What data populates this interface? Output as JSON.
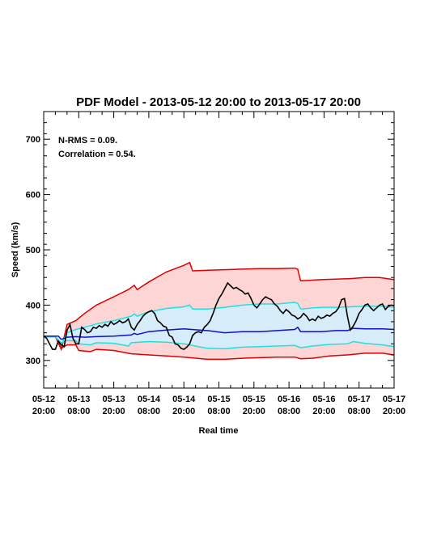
{
  "chart_data": {
    "type": "line",
    "title": "PDF Model - 2013-05-12 20:00 to 2013-05-17 20:00",
    "xlabel": "Real time",
    "ylabel": "Speed (km/s)",
    "annotations": [
      "N-RMS = 0.09.",
      "Correlation = 0.54."
    ],
    "x_range_hours": [
      0,
      120
    ],
    "ylim": [
      250,
      750
    ],
    "y_ticks": [
      300,
      400,
      500,
      600,
      700
    ],
    "x_ticks": [
      {
        "hours": 0,
        "line1": "05-12",
        "line2": "20:00"
      },
      {
        "hours": 12,
        "line1": "05-13",
        "line2": "08:00"
      },
      {
        "hours": 24,
        "line1": "05-13",
        "line2": "20:00"
      },
      {
        "hours": 36,
        "line1": "05-14",
        "line2": "08:00"
      },
      {
        "hours": 48,
        "line1": "05-14",
        "line2": "20:00"
      },
      {
        "hours": 60,
        "line1": "05-15",
        "line2": "08:00"
      },
      {
        "hours": 72,
        "line1": "05-15",
        "line2": "20:00"
      },
      {
        "hours": 84,
        "line1": "05-16",
        "line2": "08:00"
      },
      {
        "hours": 96,
        "line1": "05-16",
        "line2": "20:00"
      },
      {
        "hours": 108,
        "line1": "05-17",
        "line2": "08:00"
      },
      {
        "hours": 120,
        "line1": "05-17",
        "line2": "20:00"
      }
    ],
    "colors": {
      "outer_band_line": "#e00000",
      "outer_band_fill": "#fdd5d5",
      "inner_band_line": "#22e0e0",
      "inner_band_fill": "#d6ecf8",
      "model_line": "#1010c8",
      "observed_line": "#000000"
    },
    "series": [
      {
        "role": "outer_upper",
        "points": [
          [
            0,
            343
          ],
          [
            4,
            343
          ],
          [
            6,
            320
          ],
          [
            8,
            365
          ],
          [
            11,
            372
          ],
          [
            14,
            385
          ],
          [
            18,
            400
          ],
          [
            24,
            415
          ],
          [
            29,
            428
          ],
          [
            31,
            436
          ],
          [
            32,
            428
          ],
          [
            36,
            442
          ],
          [
            42,
            460
          ],
          [
            48,
            472
          ],
          [
            50,
            477
          ],
          [
            51,
            462
          ],
          [
            56,
            463
          ],
          [
            62,
            464
          ],
          [
            68,
            465
          ],
          [
            74,
            466
          ],
          [
            80,
            466
          ],
          [
            86,
            467
          ],
          [
            87,
            465
          ],
          [
            88,
            444
          ],
          [
            95,
            446
          ],
          [
            100,
            447
          ],
          [
            105,
            448
          ],
          [
            110,
            450
          ],
          [
            115,
            450
          ],
          [
            120,
            446
          ]
        ]
      },
      {
        "role": "outer_lower",
        "points": [
          [
            0,
            343
          ],
          [
            4,
            343
          ],
          [
            6,
            322
          ],
          [
            8,
            328
          ],
          [
            11,
            328
          ],
          [
            12,
            318
          ],
          [
            16,
            316
          ],
          [
            18,
            320
          ],
          [
            24,
            318
          ],
          [
            30,
            312
          ],
          [
            36,
            310
          ],
          [
            42,
            308
          ],
          [
            48,
            306
          ],
          [
            56,
            302
          ],
          [
            62,
            302
          ],
          [
            68,
            304
          ],
          [
            74,
            305
          ],
          [
            80,
            306
          ],
          [
            86,
            306
          ],
          [
            88,
            303
          ],
          [
            92,
            304
          ],
          [
            98,
            308
          ],
          [
            104,
            310
          ],
          [
            110,
            313
          ],
          [
            116,
            313
          ],
          [
            120,
            310
          ]
        ]
      },
      {
        "role": "inner_upper",
        "points": [
          [
            0,
            343
          ],
          [
            4,
            343
          ],
          [
            6,
            328
          ],
          [
            8,
            350
          ],
          [
            11,
            356
          ],
          [
            14,
            360
          ],
          [
            18,
            366
          ],
          [
            24,
            372
          ],
          [
            30,
            380
          ],
          [
            31,
            384
          ],
          [
            32,
            380
          ],
          [
            36,
            388
          ],
          [
            42,
            394
          ],
          [
            48,
            397
          ],
          [
            50,
            400
          ],
          [
            51,
            393
          ],
          [
            56,
            393
          ],
          [
            62,
            396
          ],
          [
            68,
            400
          ],
          [
            74,
            402
          ],
          [
            80,
            402
          ],
          [
            86,
            405
          ],
          [
            87,
            403
          ],
          [
            88,
            393
          ],
          [
            95,
            396
          ],
          [
            100,
            396
          ],
          [
            105,
            397
          ],
          [
            110,
            398
          ],
          [
            116,
            398
          ],
          [
            120,
            396
          ]
        ]
      },
      {
        "role": "inner_lower",
        "points": [
          [
            0,
            343
          ],
          [
            4,
            343
          ],
          [
            6,
            332
          ],
          [
            8,
            336
          ],
          [
            11,
            336
          ],
          [
            12,
            330
          ],
          [
            16,
            328
          ],
          [
            18,
            332
          ],
          [
            24,
            331
          ],
          [
            29,
            326
          ],
          [
            30,
            332
          ],
          [
            36,
            334
          ],
          [
            42,
            333
          ],
          [
            48,
            330
          ],
          [
            56,
            322
          ],
          [
            62,
            321
          ],
          [
            68,
            324
          ],
          [
            74,
            325
          ],
          [
            80,
            326
          ],
          [
            86,
            327
          ],
          [
            88,
            323
          ],
          [
            92,
            326
          ],
          [
            98,
            329
          ],
          [
            104,
            330
          ],
          [
            106,
            334
          ],
          [
            110,
            331
          ],
          [
            116,
            328
          ],
          [
            120,
            325
          ]
        ]
      },
      {
        "role": "model",
        "points": [
          [
            0,
            344
          ],
          [
            5,
            344
          ],
          [
            6,
            338
          ],
          [
            8,
            342
          ],
          [
            11,
            343
          ],
          [
            14,
            342
          ],
          [
            18,
            343
          ],
          [
            24,
            344
          ],
          [
            30,
            346
          ],
          [
            31,
            349
          ],
          [
            32,
            347
          ],
          [
            36,
            352
          ],
          [
            42,
            355
          ],
          [
            48,
            357
          ],
          [
            56,
            354
          ],
          [
            62,
            350
          ],
          [
            68,
            352
          ],
          [
            74,
            352
          ],
          [
            80,
            354
          ],
          [
            86,
            356
          ],
          [
            87,
            360
          ],
          [
            88,
            352
          ],
          [
            95,
            352
          ],
          [
            100,
            354
          ],
          [
            104,
            354
          ],
          [
            106,
            358
          ],
          [
            110,
            357
          ],
          [
            116,
            357
          ],
          [
            120,
            356
          ]
        ]
      },
      {
        "role": "observed",
        "points": [
          [
            0,
            344
          ],
          [
            1,
            340
          ],
          [
            2,
            330
          ],
          [
            3,
            320
          ],
          [
            4,
            320
          ],
          [
            5,
            335
          ],
          [
            6,
            328
          ],
          [
            7,
            325
          ],
          [
            8,
            355
          ],
          [
            9,
            365
          ],
          [
            10,
            340
          ],
          [
            11,
            330
          ],
          [
            12,
            330
          ],
          [
            13,
            360
          ],
          [
            14,
            356
          ],
          [
            15,
            350
          ],
          [
            16,
            352
          ],
          [
            17,
            360
          ],
          [
            18,
            358
          ],
          [
            19,
            363
          ],
          [
            20,
            360
          ],
          [
            21,
            365
          ],
          [
            22,
            362
          ],
          [
            23,
            370
          ],
          [
            24,
            365
          ],
          [
            25,
            368
          ],
          [
            26,
            372
          ],
          [
            27,
            368
          ],
          [
            28,
            370
          ],
          [
            29,
            375
          ],
          [
            30,
            360
          ],
          [
            31,
            355
          ],
          [
            32,
            365
          ],
          [
            33,
            372
          ],
          [
            34,
            380
          ],
          [
            35,
            385
          ],
          [
            36,
            388
          ],
          [
            37,
            390
          ],
          [
            38,
            385
          ],
          [
            39,
            372
          ],
          [
            40,
            368
          ],
          [
            41,
            362
          ],
          [
            42,
            360
          ],
          [
            43,
            345
          ],
          [
            44,
            342
          ],
          [
            45,
            330
          ],
          [
            46,
            328
          ],
          [
            47,
            322
          ],
          [
            48,
            320
          ],
          [
            49,
            324
          ],
          [
            50,
            330
          ],
          [
            51,
            345
          ],
          [
            52,
            350
          ],
          [
            53,
            352
          ],
          [
            54,
            350
          ],
          [
            55,
            360
          ],
          [
            56,
            365
          ],
          [
            57,
            372
          ],
          [
            58,
            385
          ],
          [
            59,
            400
          ],
          [
            60,
            412
          ],
          [
            61,
            420
          ],
          [
            62,
            430
          ],
          [
            63,
            440
          ],
          [
            64,
            435
          ],
          [
            65,
            430
          ],
          [
            66,
            432
          ],
          [
            67,
            428
          ],
          [
            68,
            425
          ],
          [
            69,
            420
          ],
          [
            70,
            422
          ],
          [
            71,
            412
          ],
          [
            72,
            400
          ],
          [
            73,
            395
          ],
          [
            74,
            402
          ],
          [
            75,
            410
          ],
          [
            76,
            415
          ],
          [
            77,
            412
          ],
          [
            78,
            410
          ],
          [
            79,
            402
          ],
          [
            80,
            398
          ],
          [
            81,
            390
          ],
          [
            82,
            385
          ],
          [
            83,
            392
          ],
          [
            84,
            388
          ],
          [
            85,
            382
          ],
          [
            86,
            380
          ],
          [
            87,
            375
          ],
          [
            88,
            378
          ],
          [
            89,
            385
          ],
          [
            90,
            380
          ],
          [
            91,
            372
          ],
          [
            92,
            375
          ],
          [
            93,
            372
          ],
          [
            94,
            380
          ],
          [
            95,
            376
          ],
          [
            96,
            378
          ],
          [
            97,
            382
          ],
          [
            98,
            380
          ],
          [
            99,
            385
          ],
          [
            100,
            388
          ],
          [
            101,
            395
          ],
          [
            102,
            410
          ],
          [
            103,
            412
          ],
          [
            104,
            380
          ],
          [
            105,
            355
          ],
          [
            106,
            362
          ],
          [
            107,
            372
          ],
          [
            108,
            385
          ],
          [
            109,
            392
          ],
          [
            110,
            400
          ],
          [
            111,
            402
          ],
          [
            112,
            395
          ],
          [
            113,
            390
          ],
          [
            114,
            395
          ],
          [
            115,
            400
          ],
          [
            116,
            402
          ],
          [
            117,
            392
          ],
          [
            118,
            398
          ],
          [
            119,
            400
          ],
          [
            120,
            399
          ]
        ]
      }
    ]
  }
}
